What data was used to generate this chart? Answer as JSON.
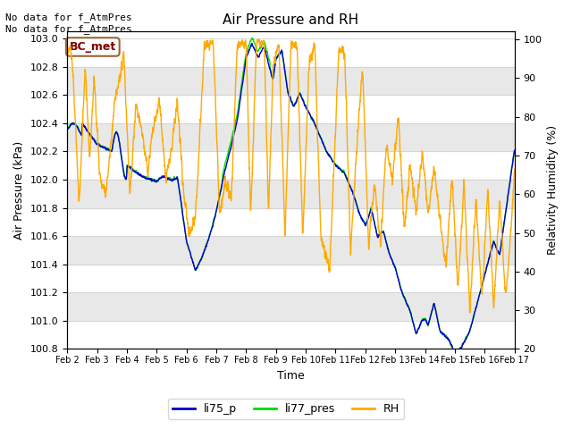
{
  "title": "Air Pressure and RH",
  "xlabel": "Time",
  "ylabel_left": "Air Pressure (kPa)",
  "ylabel_right": "Relativity Humidity (%)",
  "annotation": "No data for f_AtmPres\nNo data for f_AtmPres",
  "box_label": "BC_met",
  "legend_labels": [
    "li75_p",
    "li77_pres",
    "RH"
  ],
  "legend_colors": [
    "#0000cc",
    "#00dd00",
    "#ffaa00"
  ],
  "ylim_left": [
    100.8,
    103.05
  ],
  "ylim_right": [
    20,
    102
  ],
  "yticks_left": [
    100.8,
    101.0,
    101.2,
    101.4,
    101.6,
    101.8,
    102.0,
    102.2,
    102.4,
    102.6,
    102.8,
    103.0
  ],
  "yticks_right": [
    20,
    30,
    40,
    50,
    60,
    70,
    80,
    90,
    100
  ],
  "background_color": "#ffffff",
  "band_color": "#e8e8e8",
  "figsize": [
    6.4,
    4.8
  ],
  "dpi": 100
}
